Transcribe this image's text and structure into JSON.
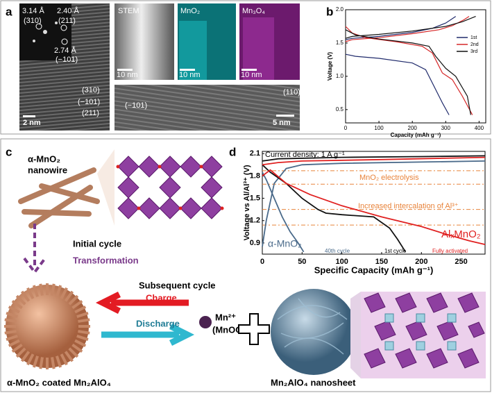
{
  "panel_a": {
    "label": "a",
    "fft_labels": [
      "3.14 Å",
      "(310)",
      "2.40 Å",
      "(211)",
      "2.74 Å",
      "(−101)"
    ],
    "hrtem_labels": [
      "(310)",
      "(−101)",
      "(211)"
    ],
    "scale_left": "2 nm",
    "stem_titles": [
      "STEM",
      "MnO₂",
      "Mn₃O₄"
    ],
    "stem_scales": [
      "10 nm",
      "10 nm",
      "10 nm"
    ],
    "bottom_labels": [
      "(−101)",
      "(110)"
    ],
    "scale_bottom": "5 nm"
  },
  "panel_c": {
    "label": "c",
    "wire_label": [
      "α-MnO₂",
      "nanowire"
    ],
    "initial": "Initial cycle",
    "transformation": "Transformation",
    "subsequent": "Subsequent cycle",
    "charge": "Charge",
    "discharge": "Discharge",
    "ion": "Mn²⁺",
    "ion_form": "(MnOOH)",
    "left_caption": "α-MnO₂ coated Mn₂AlO₄",
    "right_caption": "Mn₂AlO₄ nanosheet"
  },
  "chart_data": [
    {
      "type": "line",
      "panel_label": "b",
      "xlabel": "Capacity (mAh g⁻¹)",
      "ylabel": "Voltage (V)",
      "xlim": [
        0,
        420
      ],
      "ylim": [
        0.3,
        2.0
      ],
      "xticks": [
        0,
        100,
        200,
        300,
        400
      ],
      "yticks": [
        0.5,
        {
          "value": 1,
          "label": "1.0"
        },
        1.5,
        {
          "value": 2,
          "label": "2.0"
        }
      ],
      "legend": "upper-right",
      "series": [
        {
          "name": "1st",
          "color": "#1f2a6b",
          "x": [
            0,
            20,
            100,
            200,
            260,
            300,
            330,
            null,
            0,
            30,
            100,
            200,
            240,
            270,
            290,
            310
          ],
          "values": [
            1.55,
            1.57,
            1.6,
            1.66,
            1.72,
            1.8,
            1.9,
            null,
            1.33,
            1.3,
            1.27,
            1.2,
            1.1,
            0.8,
            0.6,
            0.42
          ]
        },
        {
          "name": "2nd",
          "color": "#d62728",
          "x": [
            0,
            20,
            100,
            200,
            280,
            320,
            355,
            370,
            null,
            0,
            20,
            60,
            150,
            230,
            260,
            290,
            320,
            350,
            380
          ],
          "values": [
            1.52,
            1.55,
            1.58,
            1.64,
            1.7,
            1.76,
            1.85,
            1.9,
            null,
            1.75,
            1.65,
            1.58,
            1.52,
            1.45,
            1.35,
            1.05,
            0.95,
            0.7,
            0.42
          ]
        },
        {
          "name": "3rd",
          "color": "#111111",
          "x": [
            0,
            20,
            100,
            200,
            300,
            350,
            390,
            null,
            0,
            30,
            100,
            200,
            250,
            270,
            300,
            330,
            365,
            375
          ],
          "values": [
            1.57,
            1.6,
            1.63,
            1.68,
            1.75,
            1.82,
            1.9,
            null,
            1.7,
            1.62,
            1.56,
            1.5,
            1.45,
            1.3,
            1.12,
            1.0,
            0.7,
            0.42
          ]
        }
      ]
    },
    {
      "type": "line",
      "panel_label": "d",
      "xlabel": "Specific Capacity (mAh g⁻¹)",
      "ylabel": "Voltage vs Al/Al³⁺ (V)",
      "xlim": [
        0,
        280
      ],
      "ylim": [
        0.75,
        2.13
      ],
      "xticks": [
        0,
        50,
        100,
        150,
        200,
        250
      ],
      "yticks": [
        0.9,
        1.2,
        1.5,
        1.8,
        2.1
      ],
      "hlines": [
        1.87,
        1.69,
        1.35,
        1.14
      ],
      "hline_color": "#e8833a",
      "annotations": [
        "Current density: 1 A g⁻¹",
        "MnO₂ electrolysis",
        "Increased intercalation of Al³⁺",
        "AlₓMnO₂",
        "α-MnO₂",
        "40th cycle",
        "1st cycle",
        "Fully activated"
      ],
      "series": [
        {
          "color": "#4a6a8a",
          "x": [
            0,
            5,
            15,
            25,
            35,
            45,
            52,
            null,
            0,
            5,
            15,
            30,
            50,
            100,
            280
          ],
          "values": [
            1.85,
            1.75,
            1.5,
            1.25,
            1.05,
            0.9,
            0.78,
            null,
            0.85,
            1.2,
            1.7,
            1.9,
            1.95,
            1.97,
            2.0
          ]
        },
        {
          "color": "#111111",
          "x": [
            0,
            20,
            100,
            200,
            280,
            null,
            0,
            10,
            30,
            50,
            70,
            80,
            100,
            140,
            160,
            170,
            180
          ],
          "values": [
            2.0,
            2.03,
            2.05,
            2.06,
            2.07,
            null,
            1.95,
            1.85,
            1.7,
            1.5,
            1.35,
            1.3,
            1.28,
            1.25,
            1.1,
            0.95,
            0.78
          ]
        },
        {
          "color": "#e02020",
          "x": [
            0,
            20,
            50,
            150,
            280,
            null,
            0,
            10,
            30,
            60,
            100,
            150,
            200,
            230,
            260,
            280
          ],
          "values": [
            1.95,
            1.98,
            2.0,
            2.02,
            2.05,
            null,
            1.8,
            1.88,
            1.7,
            1.55,
            1.4,
            1.25,
            1.12,
            1.02,
            0.93,
            0.88
          ]
        }
      ]
    }
  ]
}
